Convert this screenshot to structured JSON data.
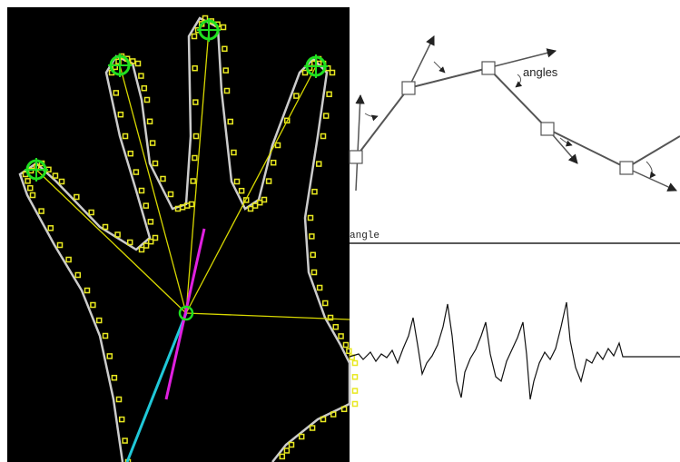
{
  "diagram": {
    "annotation": "angles",
    "plot_label": "angle"
  }
}
